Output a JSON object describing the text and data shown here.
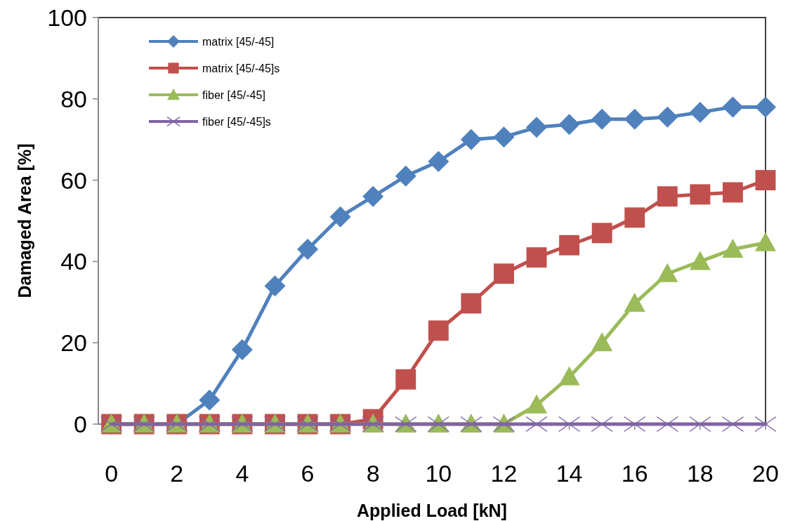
{
  "chart_data": {
    "type": "line",
    "xlabel": "Applied Load [kN]",
    "ylabel": "Damaged Area [%]",
    "x": [
      0,
      1,
      2,
      3,
      4,
      5,
      6,
      7,
      8,
      9,
      10,
      11,
      12,
      13,
      14,
      15,
      16,
      17,
      18,
      19,
      20
    ],
    "xlim": [
      -0.4,
      20
    ],
    "xticks": [
      0,
      2,
      4,
      6,
      8,
      10,
      12,
      14,
      16,
      18,
      20
    ],
    "ylim": [
      0,
      100
    ],
    "yticks": [
      0,
      20,
      40,
      60,
      80,
      100
    ],
    "grid": false,
    "legend": "top left",
    "line_style": "solid",
    "series": [
      {
        "name": "matrix [45/-45]",
        "color": "#4f81bd",
        "marker": "diamond",
        "values": [
          0,
          0,
          0,
          5.9,
          18.3,
          34,
          43,
          51,
          56,
          61,
          64.6,
          70,
          70.6,
          73,
          73.7,
          75,
          75,
          75.5,
          76.7,
          78,
          78
        ]
      },
      {
        "name": "matrix [45/-45]s",
        "color": "#c0504d",
        "marker": "square",
        "values": [
          0,
          0,
          0,
          0,
          0,
          0,
          0,
          0,
          1.2,
          11,
          23,
          29.7,
          37,
          41,
          44,
          47,
          50.8,
          56,
          56.5,
          57,
          60
        ]
      },
      {
        "name": "fiber [45/-45]",
        "color": "#9bbb59",
        "marker": "triangle",
        "values": [
          0,
          0,
          0,
          0,
          0,
          0,
          0,
          0,
          0,
          0,
          0,
          0,
          0,
          4.7,
          11.6,
          20,
          29.7,
          37,
          40,
          43,
          44.6
        ]
      },
      {
        "name": "fiber [45/-45]s",
        "color": "#8064a2",
        "marker": "cross",
        "values": [
          0,
          0,
          0,
          0,
          0,
          0,
          0,
          0,
          0,
          0,
          0,
          0,
          0,
          0,
          0,
          0,
          0,
          0,
          0,
          0,
          0
        ]
      }
    ]
  }
}
